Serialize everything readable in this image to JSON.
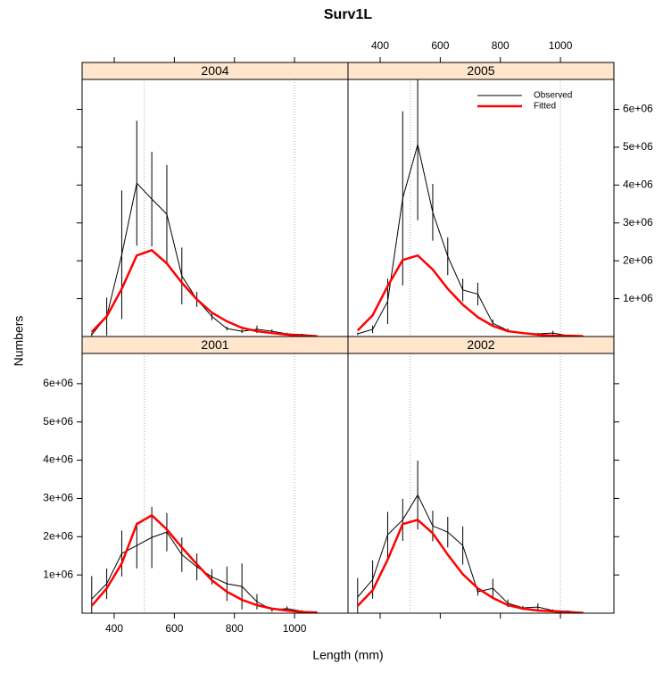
{
  "chart_data": {
    "type": "line",
    "title": "Surv1L",
    "xlabel": "Length (mm)",
    "ylabel": "Numbers",
    "x": [
      325,
      375,
      425,
      475,
      525,
      575,
      625,
      675,
      725,
      775,
      825,
      875,
      925,
      975,
      1025,
      1075
    ],
    "xlim": [
      293,
      1178
    ],
    "xticks": [
      400,
      600,
      800,
      1000
    ],
    "ylim": [
      0,
      6790000
    ],
    "yticks": [
      {
        "value": 1000000,
        "label": "1e+06"
      },
      {
        "value": 2000000,
        "label": "2e+06"
      },
      {
        "value": 3000000,
        "label": "3e+06"
      },
      {
        "value": 4000000,
        "label": "4e+06"
      },
      {
        "value": 5000000,
        "label": "5e+06"
      },
      {
        "value": 6000000,
        "label": "6e+06"
      }
    ],
    "reference_lines": [
      500,
      1000
    ],
    "strip_color": "#ffe5cc",
    "series": [
      {
        "name": "Observed",
        "color": "#000000"
      },
      {
        "name": "Fitted",
        "color": "#ff0000"
      }
    ],
    "panels": [
      {
        "strip": "2004",
        "observed": [
          50000,
          530000,
          2160000,
          4050000,
          3630000,
          3230000,
          1600000,
          980000,
          530000,
          210000,
          140000,
          190000,
          140000,
          70000,
          50000,
          20000
        ],
        "errors": [
          50000,
          500000,
          1700000,
          1650000,
          1250000,
          1300000,
          750000,
          200000,
          100000,
          50000,
          50000,
          100000,
          50000,
          30000,
          20000,
          10000
        ],
        "fitted": [
          120000,
          530000,
          1260000,
          2140000,
          2280000,
          1930000,
          1420000,
          980000,
          630000,
          400000,
          230000,
          140000,
          90000,
          50000,
          20000,
          10000
        ]
      },
      {
        "strip": "2005",
        "observed": [
          70000,
          190000,
          930000,
          3650000,
          5070000,
          3280000,
          2120000,
          1230000,
          1120000,
          350000,
          160000,
          90000,
          70000,
          90000,
          20000,
          10000
        ],
        "errors": [
          30000,
          100000,
          600000,
          2300000,
          2000000,
          750000,
          500000,
          300000,
          300000,
          100000,
          50000,
          30000,
          30000,
          60000,
          10000,
          10000
        ],
        "fitted": [
          160000,
          560000,
          1330000,
          2020000,
          2140000,
          1770000,
          1260000,
          840000,
          510000,
          280000,
          140000,
          90000,
          50000,
          20000,
          20000,
          10000
        ]
      },
      {
        "strip": "2001",
        "observed": [
          370000,
          770000,
          1560000,
          1770000,
          1980000,
          2120000,
          1530000,
          1210000,
          950000,
          770000,
          700000,
          300000,
          90000,
          120000,
          50000,
          20000
        ],
        "errors": [
          600000,
          400000,
          600000,
          600000,
          800000,
          500000,
          450000,
          350000,
          200000,
          450000,
          600000,
          200000,
          50000,
          60000,
          30000,
          10000
        ],
        "fitted": [
          190000,
          650000,
          1300000,
          2330000,
          2560000,
          2190000,
          1720000,
          1280000,
          860000,
          560000,
          350000,
          210000,
          120000,
          70000,
          30000,
          20000
        ]
      },
      {
        "strip": "2002",
        "observed": [
          420000,
          880000,
          2050000,
          2440000,
          3090000,
          2280000,
          2120000,
          1770000,
          560000,
          650000,
          260000,
          140000,
          160000,
          70000,
          50000,
          20000
        ],
        "errors": [
          500000,
          500000,
          600000,
          550000,
          900000,
          400000,
          400000,
          500000,
          100000,
          250000,
          100000,
          50000,
          100000,
          30000,
          20000,
          10000
        ],
        "fitted": [
          190000,
          600000,
          1400000,
          2330000,
          2440000,
          2090000,
          1530000,
          1020000,
          650000,
          400000,
          210000,
          120000,
          70000,
          50000,
          20000,
          10000
        ]
      }
    ]
  }
}
